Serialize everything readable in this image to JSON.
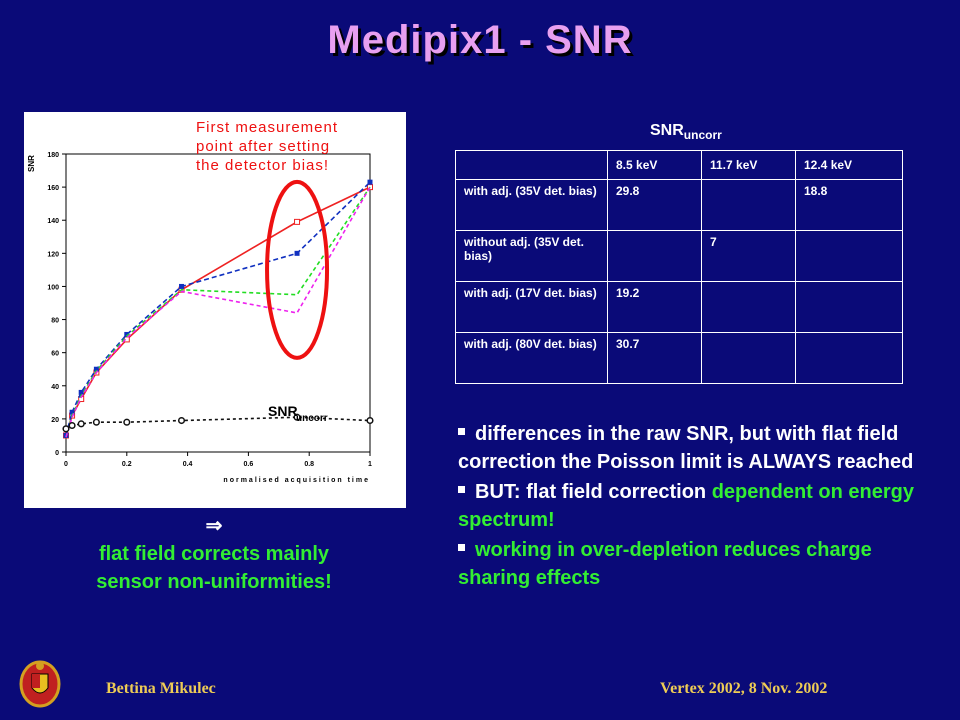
{
  "title": "Medipix1 - SNR",
  "chart": {
    "annotation": [
      "First measurement",
      "point after setting",
      "the detector bias!"
    ],
    "series_label": "SNR",
    "series_label_sub": "uncorr",
    "ylabel": "SNR",
    "xlabel": "normalised acquisition time",
    "y_ticks": [
      "0",
      "20",
      "40",
      "60",
      "80",
      "100",
      "120",
      "140",
      "160",
      "180"
    ],
    "x_ticks": [
      "0",
      "0.2",
      "0.4",
      "0.6",
      "0.8",
      "1"
    ]
  },
  "chart_data": {
    "type": "line",
    "xlabel": "normalised acquisition time",
    "ylabel": "SNR",
    "xlim": [
      0,
      1
    ],
    "ylim": [
      0,
      180
    ],
    "series": [
      {
        "color": "#ee2222",
        "dash": "",
        "x": [
          0,
          0.02,
          0.05,
          0.1,
          0.2,
          0.38,
          0.76,
          1
        ],
        "y": [
          10,
          22,
          32,
          48,
          68,
          98,
          139,
          160
        ]
      },
      {
        "color": "#1030c0",
        "dash": "5,3",
        "x": [
          0,
          0.02,
          0.05,
          0.1,
          0.2,
          0.38,
          0.76,
          1
        ],
        "y": [
          10,
          24,
          36,
          50,
          71,
          100,
          120,
          163
        ]
      },
      {
        "color": "#22dd22",
        "dash": "4,3",
        "x": [
          0,
          0.02,
          0.05,
          0.1,
          0.2,
          0.38,
          0.76,
          1
        ],
        "y": [
          9,
          22,
          34,
          49,
          70,
          98,
          95,
          160
        ]
      },
      {
        "color": "#ee22ee",
        "dash": "4,3",
        "x": [
          0,
          0.02,
          0.05,
          0.1,
          0.2,
          0.38,
          0.76,
          1
        ],
        "y": [
          9,
          21,
          33,
          48,
          69,
          97,
          84,
          160
        ]
      },
      {
        "color": "#111111",
        "dash": "3,3",
        "x": [
          0,
          0.02,
          0.05,
          0.1,
          0.2,
          0.38,
          0.76,
          1
        ],
        "y": [
          14,
          16,
          17,
          18,
          18,
          19,
          21,
          19
        ]
      }
    ]
  },
  "table": {
    "title": "SNR",
    "title_sub": "uncorr",
    "headers": [
      "",
      "8.5 keV",
      "11.7 keV",
      "12.4 keV"
    ],
    "rows": [
      [
        "with adj. (35V det. bias)",
        "29.8",
        "",
        "18.8"
      ],
      [
        "without adj. (35V det. bias)",
        "",
        "7",
        ""
      ],
      [
        "with adj. (17V det. bias)",
        "19.2",
        "",
        ""
      ],
      [
        "with adj. (80V det. bias)",
        "30.7",
        "",
        ""
      ]
    ]
  },
  "note": {
    "arrow": "⇒",
    "line1": "flat field corrects mainly",
    "line2": "sensor non-uniformities!"
  },
  "bullets": {
    "b1": "differences in the raw SNR, but with flat field correction the Poisson limit is ALWAYS reached",
    "b2_white": "BUT: flat field correction",
    "b2_green": "dependent on energy spectrum!",
    "b3": "working in over-depletion reduces charge sharing effects"
  },
  "footer": {
    "left": "Bettina Mikulec",
    "right": "Vertex 2002, 8 Nov. 2002"
  }
}
